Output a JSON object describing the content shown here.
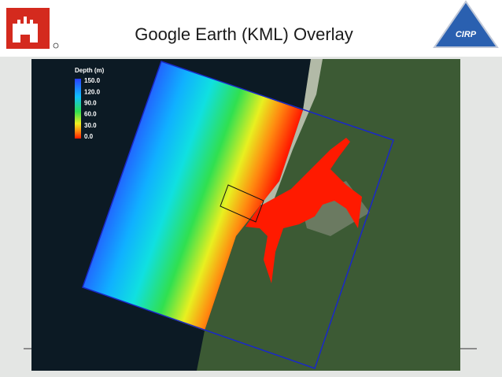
{
  "title": "Google Earth (KML) Overlay",
  "logo": {
    "text": "CIRP"
  },
  "legend": {
    "title": "Depth (m)",
    "labels": [
      "150.0",
      "120.0",
      "90.0",
      "60.0",
      "30.0",
      "0.0"
    ]
  }
}
